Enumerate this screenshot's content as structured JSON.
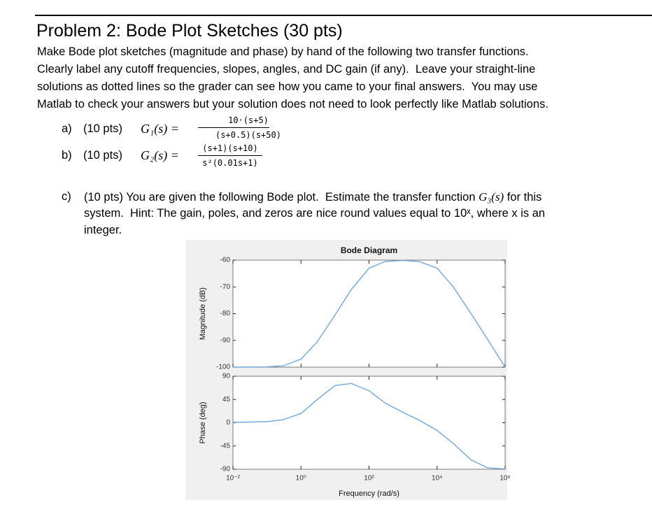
{
  "header": {
    "title": "Problem 2: Bode Plot Sketches (30 pts)"
  },
  "intro": [
    "Make Bode plot sketches (magnitude and phase) by hand of the following two transfer functions.",
    "Clearly label any cutoff frequencies, slopes, angles, and DC gain (if any).  Leave your straight-line",
    "solutions as dotted lines so the grader can see how you came to your final answers.  You may use",
    "Matlab to check your answers but your solution does not need to look perfectly like Matlab solutions."
  ],
  "items": [
    {
      "label": "a)",
      "points": "(10 pts)",
      "lhs": "G₁(s) =",
      "numerator": "10·(s+5)",
      "denominator": "(s+0.5)(s+50)"
    },
    {
      "label": "b)",
      "points": "(10 pts)",
      "lhs": "G₂(s) =",
      "numerator": "(s+1)(s+10)",
      "denominator": "s²(0.01s+1)"
    }
  ],
  "part_c": {
    "label": "c)",
    "line1": [
      "(10 pts) You are given the following Bode plot.  Estimate the transfer function ",
      "G₃(s)",
      " for this"
    ],
    "line2": "system.  Hint: The gain, poles, and zeros are nice round values equal to 10ˣ, where x is an",
    "line3": "integer."
  },
  "chart_data": [
    {
      "type": "line",
      "title": "Bode Diagram",
      "ylabel": "Magnitude (dB)",
      "xscale": "log",
      "x": [
        0.01,
        0.1,
        0.3,
        1,
        3,
        10,
        30,
        100,
        300,
        1000,
        3000,
        10000,
        30000,
        100000,
        300000,
        1000000
      ],
      "series": [
        {
          "name": "Magnitude",
          "color": "#6fa8dc",
          "values": [
            -100,
            -99.9,
            -99.5,
            -97,
            -90.5,
            -80.5,
            -71,
            -63,
            -60.5,
            -60.1,
            -60.5,
            -63,
            -70,
            -80,
            -89.5,
            -100
          ]
        }
      ],
      "xlim": [
        0.01,
        1000000
      ],
      "ylim": [
        -100,
        -60
      ],
      "yticks": [
        -100,
        -90,
        -80,
        -70,
        -60
      ]
    },
    {
      "type": "line",
      "ylabel": "Phase (deg)",
      "xlabel": "Frequency (rad/s)",
      "xscale": "log",
      "x": [
        0.01,
        0.1,
        0.3,
        1,
        3,
        10,
        30,
        100,
        300,
        1000,
        3000,
        10000,
        30000,
        100000,
        300000,
        1000000
      ],
      "series": [
        {
          "name": "Phase",
          "color": "#6fa8dc",
          "values": [
            0.7,
            2,
            6,
            18,
            45,
            72,
            76,
            62,
            38,
            20,
            5,
            -15,
            -40,
            -72,
            -87,
            -89.6
          ]
        }
      ],
      "xlim": [
        0.01,
        1000000
      ],
      "ylim": [
        -90,
        90
      ],
      "yticks": [
        -90,
        -45,
        0,
        45,
        90
      ],
      "xticks": [
        {
          "value": 0.01,
          "label": "10⁻²"
        },
        {
          "value": 1,
          "label": "10⁰"
        },
        {
          "value": 100,
          "label": "10²"
        },
        {
          "value": 10000,
          "label": "10⁴"
        },
        {
          "value": 1000000,
          "label": "10⁶"
        }
      ]
    }
  ]
}
